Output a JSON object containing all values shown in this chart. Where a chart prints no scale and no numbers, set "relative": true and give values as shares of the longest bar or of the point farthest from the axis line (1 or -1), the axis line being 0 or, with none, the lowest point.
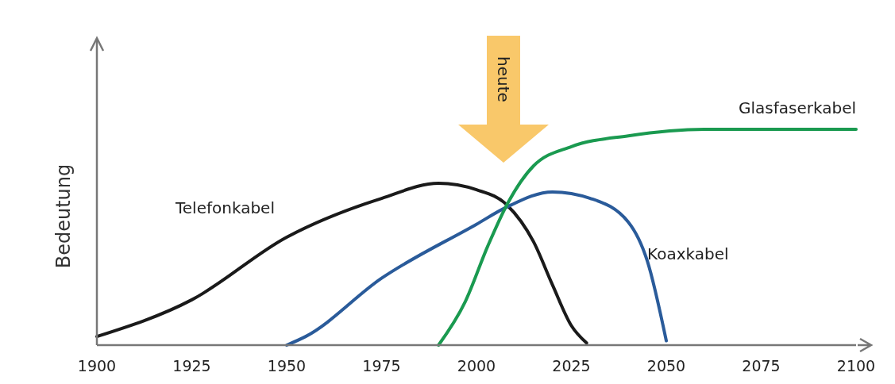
{
  "chart_data": {
    "type": "line",
    "relative": true,
    "ylabel": "Bedeutung",
    "xlim": [
      1900,
      2100
    ],
    "xticks": [
      1900,
      1925,
      1950,
      1975,
      2000,
      2025,
      2050,
      2075,
      2100
    ],
    "grid": false,
    "marker": "none",
    "line_style": "solid",
    "annotations": [
      "heute"
    ],
    "series": [
      {
        "name": "Telefonkabel",
        "color": "#1a1a1a",
        "x": [
          1900,
          1925,
          1950,
          1975,
          1990,
          2000,
          2008,
          2015,
          2020,
          2025,
          2029
        ],
        "values": [
          0.04,
          0.21,
          0.5,
          0.68,
          0.75,
          0.72,
          0.65,
          0.48,
          0.28,
          0.09,
          0.01
        ]
      },
      {
        "name": "Koaxkabel",
        "color": "#2a5b9a",
        "x": [
          1950,
          1955,
          1975,
          2000,
          2008,
          2020,
          2030,
          2040,
          2045,
          2050
        ],
        "values": [
          0,
          0.04,
          0.31,
          0.56,
          0.64,
          0.71,
          0.68,
          0.57,
          0.39,
          0.02
        ]
      },
      {
        "name": "Glasfaserkabel",
        "color": "#1a9a50",
        "x": [
          1990,
          1997,
          2003,
          2008,
          2015,
          2025,
          2040,
          2060,
          2100
        ],
        "values": [
          0,
          0.2,
          0.46,
          0.65,
          0.83,
          0.92,
          0.97,
          1,
          1
        ]
      }
    ]
  }
}
